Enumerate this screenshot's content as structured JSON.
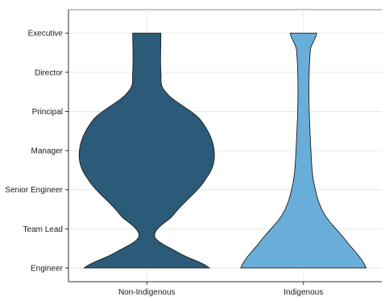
{
  "chart_data": {
    "type": "violin",
    "categories": [
      "Non-Indigenous",
      "Indigenous"
    ],
    "levels": [
      "Engineer",
      "Team Lead",
      "Senior Engineer",
      "Manager",
      "Principal",
      "Director",
      "Executive"
    ],
    "series": [
      {
        "category": "Non-Indigenous",
        "color": "#2b5b78",
        "density_profile": [
          {
            "level": 0.0,
            "half_width": 0.4
          },
          {
            "level": 0.35,
            "half_width": 0.22
          },
          {
            "level": 0.8,
            "half_width": 0.05
          },
          {
            "level": 1.3,
            "half_width": 0.16
          },
          {
            "level": 2.3,
            "half_width": 0.38
          },
          {
            "level": 3.0,
            "half_width": 0.43
          },
          {
            "level": 3.8,
            "half_width": 0.34
          },
          {
            "level": 4.5,
            "half_width": 0.12
          },
          {
            "level": 5.0,
            "half_width": 0.09
          },
          {
            "level": 6.0,
            "half_width": 0.09
          }
        ]
      },
      {
        "category": "Indigenous",
        "color": "#69aed8",
        "density_profile": [
          {
            "level": 0.0,
            "half_width": 0.4
          },
          {
            "level": 0.6,
            "half_width": 0.29
          },
          {
            "level": 1.4,
            "half_width": 0.13
          },
          {
            "level": 2.2,
            "half_width": 0.065
          },
          {
            "level": 3.2,
            "half_width": 0.045
          },
          {
            "level": 4.5,
            "half_width": 0.035
          },
          {
            "level": 5.6,
            "half_width": 0.045
          },
          {
            "level": 6.0,
            "half_width": 0.085
          }
        ]
      }
    ],
    "ylim": [
      -0.35,
      6.6
    ],
    "grid": true,
    "legend": "none",
    "title": "",
    "xlabel": "",
    "ylabel": ""
  }
}
